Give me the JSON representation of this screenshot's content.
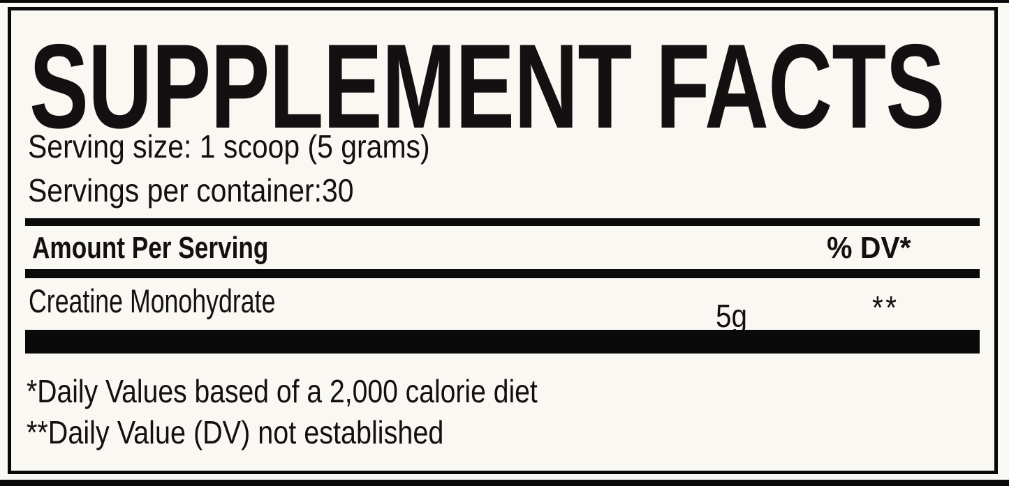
{
  "label": {
    "title": "SUPPLEMENT FACTS",
    "serving_size": "Serving size: 1 scoop (5 grams)",
    "servings_per_container": "Servings per container:30",
    "table": {
      "header": {
        "amount_column": "Amount Per Serving",
        "dv_column": "% DV*"
      },
      "rows": [
        {
          "ingredient": "Creatine Monohydrate",
          "amount": "5g",
          "daily_value": "**"
        }
      ]
    },
    "footnotes": [
      "*Daily Values based of a 2,000 calorie diet",
      "**Daily Value (DV) not established"
    ],
    "colors": {
      "background": "#f9f8f2",
      "text": "#121011",
      "bars_and_border": "#0a0909"
    }
  }
}
